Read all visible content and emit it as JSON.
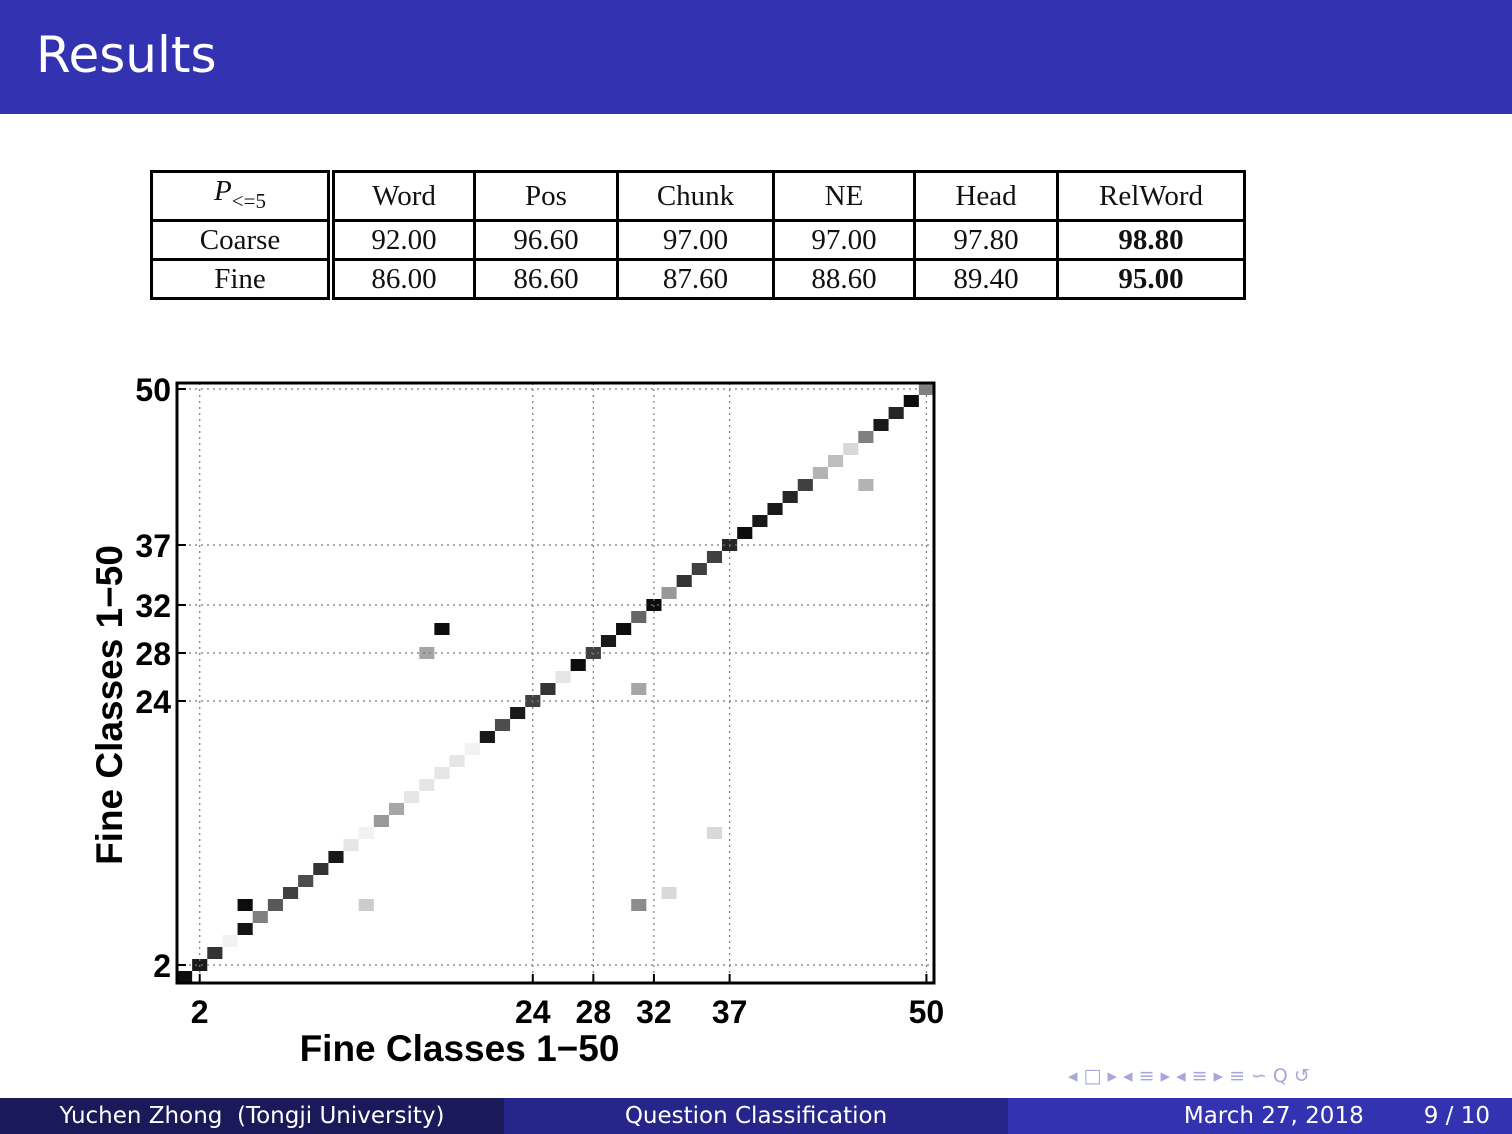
{
  "slide": {
    "title": "Results"
  },
  "table": {
    "header_symbol": "P",
    "header_subscript": "<=5",
    "columns": [
      "Word",
      "Pos",
      "Chunk",
      "NE",
      "Head",
      "RelWord"
    ],
    "rows": [
      {
        "label": "Coarse",
        "values": [
          "92.00",
          "96.60",
          "97.00",
          "97.00",
          "97.80",
          "98.80"
        ]
      },
      {
        "label": "Fine",
        "values": [
          "86.00",
          "86.60",
          "87.60",
          "88.60",
          "89.40",
          "95.00"
        ]
      }
    ]
  },
  "chart_data": {
    "type": "heatmap",
    "title": "",
    "xlabel": "Fine Classes 1−50",
    "ylabel": "Fine Classes 1−50",
    "xlim": [
      1,
      50
    ],
    "ylim": [
      1,
      50
    ],
    "xticks": [
      2,
      24,
      28,
      32,
      37,
      50
    ],
    "yticks": [
      2,
      24,
      28,
      32,
      37,
      50
    ],
    "xtick_labels": [
      "2",
      "24",
      "28",
      "32",
      "37",
      "50"
    ],
    "ytick_labels": [
      "2",
      "24",
      "28",
      "32",
      "37",
      "50"
    ],
    "grid": true,
    "colormap": "grayscale (white = 0, black = high)",
    "diagonal_intensity": [
      0.95,
      0.9,
      0.8,
      0.05,
      0.92,
      0.5,
      0.65,
      0.75,
      0.7,
      0.8,
      0.9,
      0.1,
      0.05,
      0.4,
      0.35,
      0.1,
      0.1,
      0.1,
      0.1,
      0.05,
      0.9,
      0.7,
      0.9,
      0.75,
      0.8,
      0.1,
      0.95,
      0.75,
      0.9,
      0.95,
      0.6,
      0.95,
      0.4,
      0.8,
      0.75,
      0.75,
      0.85,
      0.95,
      0.9,
      0.9,
      0.85,
      0.75,
      0.3,
      0.25,
      0.15,
      0.5,
      0.9,
      0.85,
      0.95,
      0.5
    ],
    "off_diagonal": [
      {
        "x": 5,
        "y": 7,
        "v": 0.95
      },
      {
        "x": 18,
        "y": 30,
        "v": 0.95
      },
      {
        "x": 17,
        "y": 28,
        "v": 0.35
      },
      {
        "x": 31,
        "y": 25,
        "v": 0.35
      },
      {
        "x": 31,
        "y": 7,
        "v": 0.45
      },
      {
        "x": 13,
        "y": 7,
        "v": 0.2
      },
      {
        "x": 46,
        "y": 42,
        "v": 0.3
      },
      {
        "x": 33,
        "y": 8,
        "v": 0.15
      },
      {
        "x": 36,
        "y": 13,
        "v": 0.15
      }
    ]
  },
  "nav": {
    "icons": [
      "◂",
      "□",
      "▸",
      "◂",
      "≡",
      "▸",
      "◂",
      "≡",
      "▸",
      "≡",
      "∽",
      "Q",
      "↺"
    ]
  },
  "footer": {
    "author": "Yuchen Zhong  (Tongji University)",
    "talk_title": "Question Classification",
    "date": "March 27, 2018",
    "page": "9 / 10"
  }
}
